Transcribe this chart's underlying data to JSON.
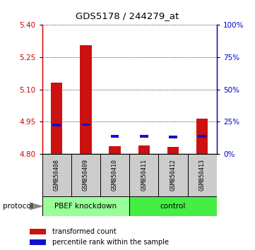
{
  "title": "GDS5178 / 244279_at",
  "samples": [
    "GSM850408",
    "GSM850409",
    "GSM850410",
    "GSM850411",
    "GSM850412",
    "GSM850413"
  ],
  "red_values": [
    5.13,
    5.305,
    4.835,
    4.838,
    4.832,
    4.962
  ],
  "blue_values": [
    4.927,
    4.93,
    4.876,
    4.875,
    4.873,
    4.876
  ],
  "y_min": 4.8,
  "y_max": 5.4,
  "y_ticks_left": [
    4.8,
    4.95,
    5.1,
    5.25,
    5.4
  ],
  "y_ticks_right": [
    0,
    25,
    50,
    75,
    100
  ],
  "groups": [
    {
      "label": "PBEF knockdown",
      "start": 0,
      "end": 3,
      "color": "#99ff99"
    },
    {
      "label": "control",
      "start": 3,
      "end": 6,
      "color": "#44ee44"
    }
  ],
  "bar_width": 0.4,
  "blue_bar_width": 0.28,
  "blue_bar_height": 0.012,
  "red_color": "#cc1111",
  "blue_color": "#1111cc",
  "left_axis_color": "#cc0000",
  "right_axis_color": "#0000cc",
  "sample_bg_color": "#cccccc",
  "group_border_color": "#000000",
  "legend_red_label": "transformed count",
  "legend_blue_label": "percentile rank within the sample",
  "title_fontsize": 9.5,
  "tick_fontsize": 7.5,
  "sample_fontsize": 6.0,
  "group_fontsize": 7.5,
  "legend_fontsize": 7.0,
  "protocol_fontsize": 7.5
}
